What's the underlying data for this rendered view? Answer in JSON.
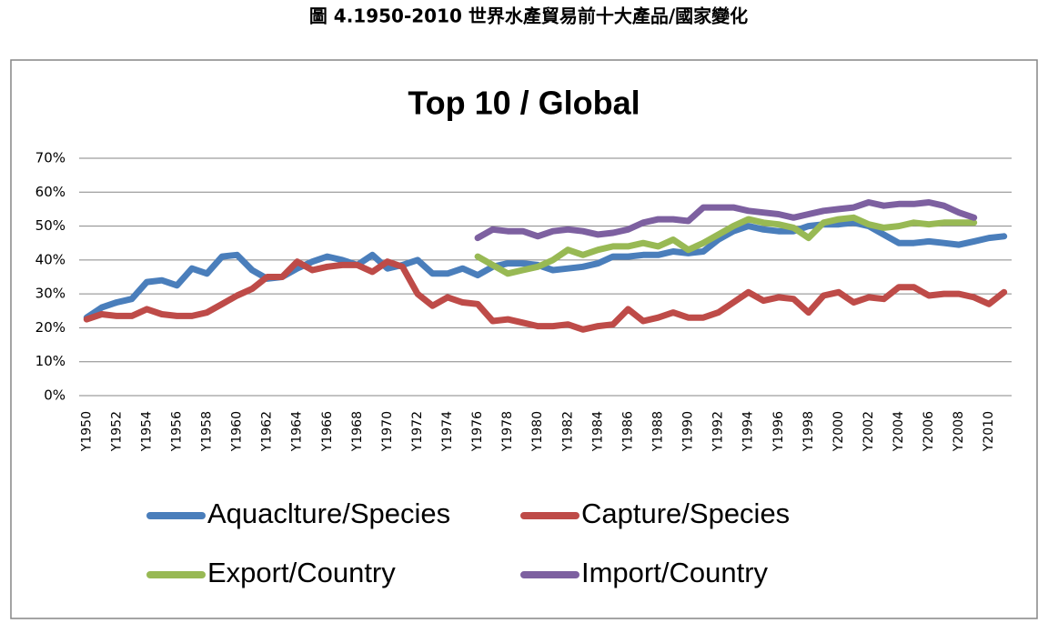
{
  "caption": "圖 4.1950-2010 世界水產貿易前十大產品/國家變化",
  "chart_data": {
    "type": "line",
    "title": "Top 10 / Global",
    "categories": [
      "Y1950",
      null,
      "Y1952",
      null,
      "Y1954",
      null,
      "Y1956",
      null,
      "Y1958",
      null,
      "Y1960",
      null,
      "Y1962",
      null,
      "Y1964",
      null,
      "Y1966",
      null,
      "Y1968",
      null,
      "Y1970",
      null,
      "Y1972",
      null,
      "Y1974",
      null,
      "Y1976",
      null,
      "Y1978",
      null,
      "Y1980",
      null,
      "Y1982",
      null,
      "Y1984",
      null,
      "Y1986",
      null,
      "Y1988",
      null,
      "Y1990",
      null,
      "Y1992",
      null,
      "Y1994",
      null,
      "Y1996",
      null,
      "Y1998",
      null,
      "Y2000",
      null,
      "Y2002",
      null,
      "Y2004",
      null,
      "Y2006",
      null,
      "Y2008",
      null,
      "Y2010",
      null
    ],
    "series": [
      {
        "name": "Aquaclture/Species",
        "color": "#4a7ebb",
        "values": [
          23,
          26,
          27.5,
          28.5,
          33.5,
          34,
          32.5,
          37.5,
          36,
          41,
          41.5,
          37,
          34.5,
          35,
          37.5,
          39.5,
          41,
          40,
          38.5,
          41.5,
          37.5,
          38.5,
          40,
          36,
          36,
          37.5,
          35.5,
          38,
          39,
          39,
          38.5,
          37,
          37.5,
          38,
          39,
          41,
          41,
          41.5,
          41.5,
          42.5,
          42,
          42.5,
          46,
          48.5,
          50,
          49,
          48.5,
          48.5,
          50,
          50.5,
          50.5,
          51,
          50,
          47.5,
          45,
          45,
          45.5,
          45,
          44.5,
          45.5,
          46.5,
          47
        ]
      },
      {
        "name": "Capture/Species",
        "color": "#be4b48",
        "values": [
          22.5,
          24,
          23.5,
          23.5,
          25.5,
          24,
          23.5,
          23.5,
          24.5,
          27,
          29.5,
          31.5,
          35,
          35,
          39.5,
          37,
          38,
          38.5,
          38.5,
          36.5,
          39.5,
          38,
          30,
          26.5,
          29,
          27.5,
          27,
          22,
          22.5,
          21.5,
          20.5,
          20.5,
          21,
          19.5,
          20.5,
          21,
          25.5,
          22,
          23,
          24.5,
          23,
          23,
          24.5,
          27.5,
          30.5,
          28,
          29,
          28.5,
          24.5,
          29.5,
          30.5,
          27.5,
          29,
          28.5,
          32,
          32,
          29.5,
          30,
          30,
          29,
          27,
          30.5
        ]
      },
      {
        "name": "Export/Country",
        "color": "#98b954",
        "values": [
          null,
          null,
          null,
          null,
          null,
          null,
          null,
          null,
          null,
          null,
          null,
          null,
          null,
          null,
          null,
          null,
          null,
          null,
          null,
          null,
          null,
          null,
          null,
          null,
          null,
          null,
          41,
          38.5,
          36,
          37,
          38,
          40,
          43,
          41.5,
          43,
          44,
          44,
          45,
          44,
          46,
          43,
          45,
          47.5,
          50,
          52,
          51,
          50.5,
          49.5,
          46.5,
          51,
          52,
          52.5,
          50.5,
          49.5,
          50,
          51,
          50.5,
          51,
          51,
          51,
          null,
          null
        ]
      },
      {
        "name": "Import/Country",
        "color": "#7d60a0",
        "values": [
          null,
          null,
          null,
          null,
          null,
          null,
          null,
          null,
          null,
          null,
          null,
          null,
          null,
          null,
          null,
          null,
          null,
          null,
          null,
          null,
          null,
          null,
          null,
          null,
          null,
          null,
          46.5,
          49,
          48.5,
          48.5,
          47,
          48.5,
          49,
          48.5,
          47.5,
          48,
          49,
          51,
          52,
          52,
          51.5,
          55.5,
          55.5,
          55.5,
          54.5,
          54,
          53.5,
          52.5,
          53.5,
          54.5,
          55,
          55.5,
          57,
          56,
          56.5,
          56.5,
          57,
          56,
          54,
          52.5,
          null,
          null
        ]
      }
    ],
    "ylim": [
      0,
      70
    ],
    "yticks": [
      {
        "value": 0,
        "label": "0%"
      },
      {
        "value": 10,
        "label": "10%"
      },
      {
        "value": 20,
        "label": "20%"
      },
      {
        "value": 30,
        "label": "30%"
      },
      {
        "value": 40,
        "label": "40%"
      },
      {
        "value": 50,
        "label": "50%"
      },
      {
        "value": 60,
        "label": "60%"
      },
      {
        "value": 70,
        "label": "70%"
      }
    ],
    "grid": true,
    "legend": "bottom"
  }
}
